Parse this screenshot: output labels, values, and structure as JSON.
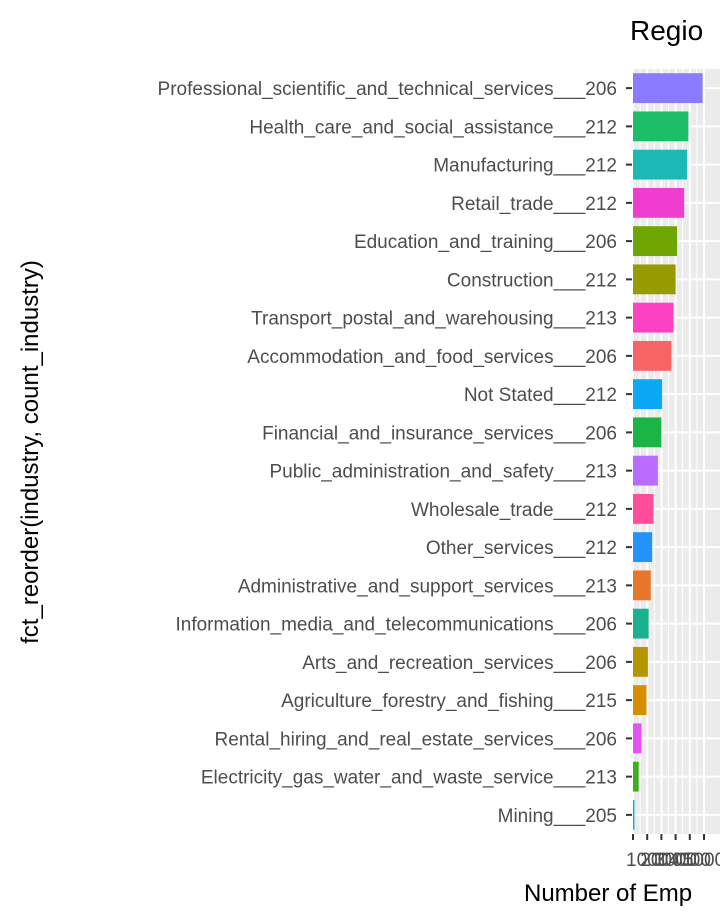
{
  "chart_data": {
    "type": "bar",
    "orientation": "horizontal",
    "title": "Regio",
    "xlabel": "Number of Emp",
    "ylabel": "fct_reorder(industry, count_industry)",
    "xlim": [
      0,
      5000
    ],
    "x_ticks": [
      "1000",
      "2000",
      "3000",
      "4000",
      "5000"
    ],
    "grid": true,
    "legend": "none",
    "categories": [
      "Professional_scientific_and_technical_services___206",
      "Health_care_and_social_assistance___212",
      "Manufacturing___212",
      "Retail_trade___212",
      "Education_and_training___206",
      "Construction___212",
      "Transport_postal_and_warehousing___213",
      "Accommodation_and_food_services___206",
      "Not Stated___212",
      "Financial_and_insurance_services___206",
      "Public_administration_and_safety___213",
      "Wholesale_trade___212",
      "Other_services___212",
      "Administrative_and_support_services___213",
      "Information_media_and_telecommunications___206",
      "Arts_and_recreation_services___206",
      "Agriculture_forestry_and_fishing___215",
      "Rental_hiring_and_real_estate_services___206",
      "Electricity_gas_water_and_waste_service___213",
      "Mining___205"
    ],
    "values": [
      4900,
      3900,
      3800,
      3600,
      3100,
      3000,
      2850,
      2700,
      2050,
      2000,
      1750,
      1450,
      1350,
      1250,
      1100,
      1050,
      950,
      600,
      400,
      100
    ],
    "colors": [
      "#8B7BFF",
      "#1DBD6A",
      "#1CB8B6",
      "#F03DCF",
      "#6FA600",
      "#979A00",
      "#FC42C2",
      "#F66463",
      "#0CA8F5",
      "#1BB546",
      "#B96CFF",
      "#FE4D99",
      "#2392FA",
      "#E8762A",
      "#19B28D",
      "#B59600",
      "#D58E00",
      "#E355EE",
      "#3CAF1A",
      "#0BB1CC"
    ]
  }
}
